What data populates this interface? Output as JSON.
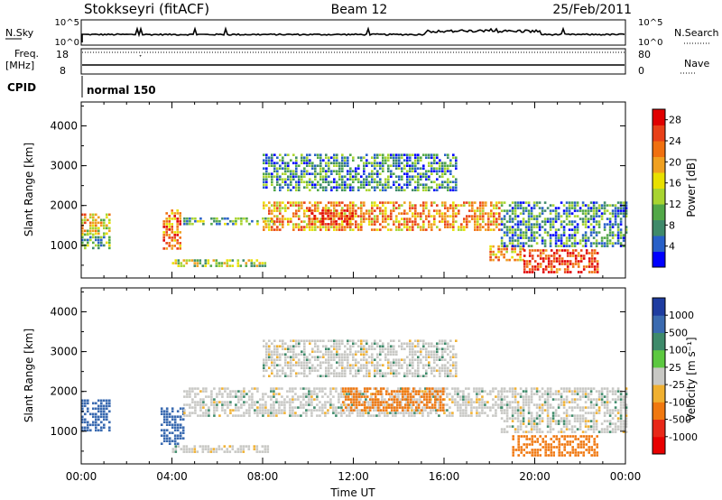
{
  "header": {
    "station": "Stokkseyri (fitACF)",
    "beam": "Beam 12",
    "date": "25/Feb/2011"
  },
  "status_panel": {
    "nsky_label": "N.Sky",
    "nsky_ticks": [
      "10^5",
      "10^0"
    ],
    "nsearch_label": "N.Search",
    "nsearch_ticks": [
      "10^5",
      "10^0"
    ],
    "freq_label": "Freq.",
    "freq_unit": "[MHz]",
    "freq_ticks": [
      "18",
      "8"
    ],
    "nave_label": "Nave",
    "nave_ticks": [
      "80",
      "0"
    ],
    "cpid_label": "CPID",
    "cpid_value": "normal 150"
  },
  "colors": {
    "background": "#ffffff",
    "axis": "#000000",
    "velocity_ground_scatter": "#c8c8c4"
  },
  "chart_data": [
    {
      "type": "heatmap",
      "name": "power",
      "ylabel": "Slant Range [km]",
      "x_ticks": [
        "00:00",
        "04:00",
        "08:00",
        "12:00",
        "16:00",
        "20:00",
        "00:00"
      ],
      "y_ticks": [
        "1000",
        "2000",
        "3000",
        "4000"
      ],
      "xlim": [
        0,
        24
      ],
      "ylim": [
        180,
        4600
      ],
      "grid": false,
      "colorbar": {
        "label": "Power [dB]",
        "ticks": [
          "28",
          "24",
          "20",
          "16",
          "12",
          "8",
          "4"
        ],
        "range": [
          0,
          30
        ],
        "colors": [
          "#0000ff",
          "#2860c8",
          "#3f8a6a",
          "#52a848",
          "#a8d430",
          "#e8e000",
          "#f0a020",
          "#f07010",
          "#e84018",
          "#e00000"
        ]
      },
      "regions": [
        {
          "t0": 0.0,
          "t1": 1.2,
          "r0": 1300,
          "r1": 1800,
          "power": 18
        },
        {
          "t0": 0.0,
          "t1": 1.2,
          "r0": 900,
          "r1": 1300,
          "power": 10
        },
        {
          "t0": 3.6,
          "t1": 4.4,
          "r0": 900,
          "r1": 1900,
          "power": 22
        },
        {
          "t0": 4.0,
          "t1": 8.2,
          "r0": 450,
          "r1": 650,
          "power": 14
        },
        {
          "t0": 4.5,
          "t1": 8.5,
          "r0": 1500,
          "r1": 1700,
          "power": 10
        },
        {
          "t0": 8.0,
          "t1": 18.5,
          "r0": 1400,
          "r1": 2100,
          "power": 20
        },
        {
          "t0": 10.0,
          "t1": 12.0,
          "r0": 1500,
          "r1": 1900,
          "power": 28
        },
        {
          "t0": 8.0,
          "t1": 16.5,
          "r0": 2400,
          "r1": 3300,
          "power": 8
        },
        {
          "t0": 18.0,
          "t1": 19.5,
          "r0": 650,
          "r1": 1000,
          "power": 20
        },
        {
          "t0": 19.5,
          "t1": 22.8,
          "r0": 350,
          "r1": 900,
          "power": 26
        },
        {
          "t0": 18.5,
          "t1": 24.0,
          "r0": 1000,
          "r1": 2100,
          "power": 8
        }
      ]
    },
    {
      "type": "heatmap",
      "name": "velocity",
      "xlabel": "Time UT",
      "ylabel": "Slant Range [km]",
      "x_ticks": [
        "00:00",
        "04:00",
        "08:00",
        "12:00",
        "16:00",
        "20:00",
        "00:00"
      ],
      "y_ticks": [
        "1000",
        "2000",
        "3000",
        "4000"
      ],
      "xlim": [
        0,
        24
      ],
      "ylim": [
        180,
        4600
      ],
      "grid": false,
      "colorbar": {
        "label": "Velocity [m s⁻¹]",
        "ticks": [
          "1000",
          "500",
          "100",
          "25",
          "-25",
          "-100",
          "-500",
          "-1000"
        ],
        "colors": [
          "#1e3ca0",
          "#3a6ab0",
          "#3e8a6a",
          "#5cc840",
          "#c8c8c4",
          "#f0b030",
          "#f07810",
          "#e82818",
          "#e80000"
        ]
      },
      "regions": [
        {
          "t0": 0.0,
          "t1": 1.2,
          "r0": 1000,
          "r1": 1800,
          "velocity": 150
        },
        {
          "t0": 3.5,
          "t1": 4.5,
          "r0": 700,
          "r1": 1600,
          "velocity": 300
        },
        {
          "t0": 4.0,
          "t1": 8.2,
          "r0": 450,
          "r1": 650,
          "velocity": 0
        },
        {
          "t0": 4.5,
          "t1": 18.5,
          "r0": 1400,
          "r1": 2100,
          "velocity": 0
        },
        {
          "t0": 8.0,
          "t1": 16.5,
          "r0": 2400,
          "r1": 3300,
          "velocity": 0
        },
        {
          "t0": 11.5,
          "t1": 16.0,
          "r0": 1500,
          "r1": 2100,
          "velocity": -200
        },
        {
          "t0": 19.0,
          "t1": 22.8,
          "r0": 400,
          "r1": 900,
          "velocity": -300
        },
        {
          "t0": 18.5,
          "t1": 24.0,
          "r0": 1000,
          "r1": 2100,
          "velocity": 0
        }
      ]
    }
  ]
}
